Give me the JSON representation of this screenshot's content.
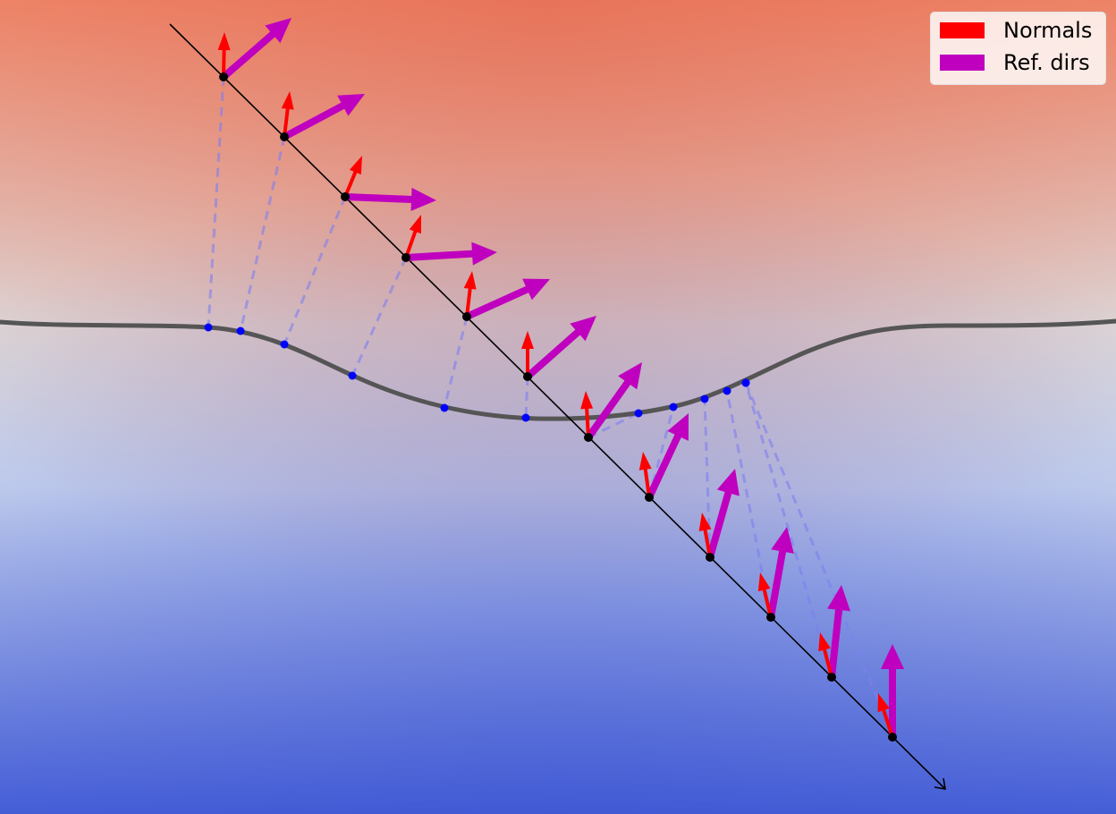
{
  "colors": {
    "top": "#e0614a",
    "middle": "#dcdde0",
    "bottom": "#4660d8",
    "surface": "#555555",
    "normal": "#ff0000",
    "ref_dir": "#bf00bf",
    "sample_point": "#000000",
    "surface_point": "#0000ff",
    "connector": "#7f7ff0"
  },
  "legend": {
    "items": [
      {
        "label": "Normals",
        "color": "#ff0000",
        "icon": "red-bar-swatch"
      },
      {
        "label": "Ref. dirs",
        "color": "#bf00bf",
        "icon": "magenta-bar-swatch"
      }
    ]
  },
  "shapes": {
    "surface": "smooth level-set curve with a downward dip",
    "ray": "straight line descending to the lower right, ending in an arrowhead",
    "sample_count": 12
  }
}
